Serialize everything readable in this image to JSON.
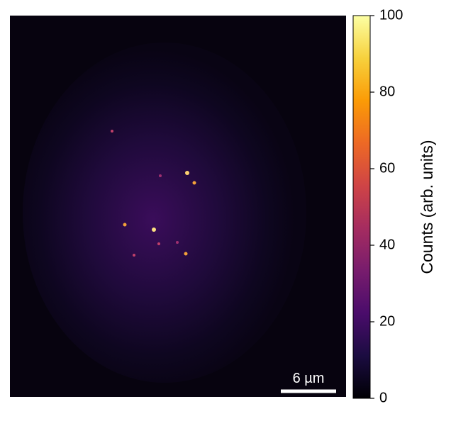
{
  "chart_data": {
    "type": "image",
    "colormap": "inferno",
    "colorbar": {
      "label": "Counts (arb. units)",
      "lim": [
        0,
        100
      ],
      "ticks": [
        0,
        20,
        40,
        60,
        80,
        100
      ]
    },
    "scale_bar": "6 µm"
  }
}
